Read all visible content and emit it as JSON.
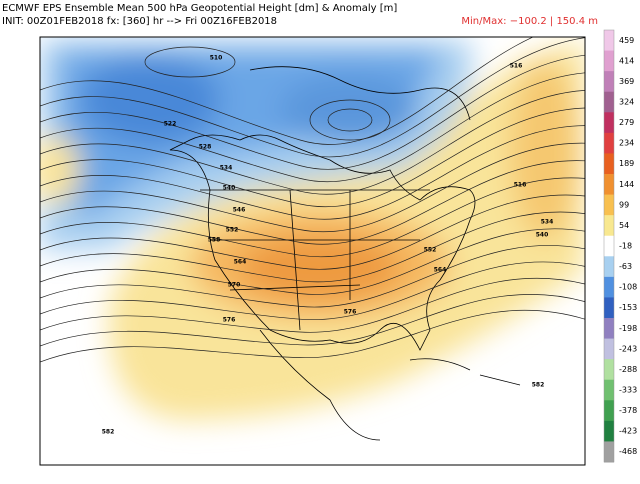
{
  "header": {
    "title": "ECMWF EPS Ensemble Mean 500 hPa Geopotential Height [dm] & Anomaly [m]",
    "init": "INIT: 00Z01FEB2018  fx: [360] hr --> Fri 00Z16FEB2018",
    "minmax": "Min/Max: −100.2 | 150.4 m"
  },
  "colorbar": {
    "labels": [
      "459",
      "414",
      "369",
      "324",
      "279",
      "234",
      "189",
      "144",
      "99",
      "54",
      "-18",
      "-63",
      "-108",
      "-153",
      "-198",
      "-243",
      "-288",
      "-333",
      "-378",
      "-423",
      "-468"
    ],
    "colors": [
      "#f0c8e8",
      "#e0a0d0",
      "#c080b8",
      "#a06090",
      "#c03060",
      "#e04040",
      "#e86020",
      "#f09030",
      "#f8c050",
      "#f8e890",
      "#ffffff",
      "#a8d0f0",
      "#5090e0",
      "#3060c0",
      "#9080c0",
      "#c0c0e0",
      "#b0e0a0",
      "#70c070",
      "#40a050",
      "#208040",
      "#a0a0a0"
    ]
  },
  "map": {
    "contour_labels": [
      "510",
      "516",
      "522",
      "528",
      "534",
      "540",
      "546",
      "552",
      "558",
      "564",
      "570",
      "576",
      "582",
      "582",
      "516",
      "534",
      "540",
      "552",
      "564",
      "576"
    ]
  }
}
